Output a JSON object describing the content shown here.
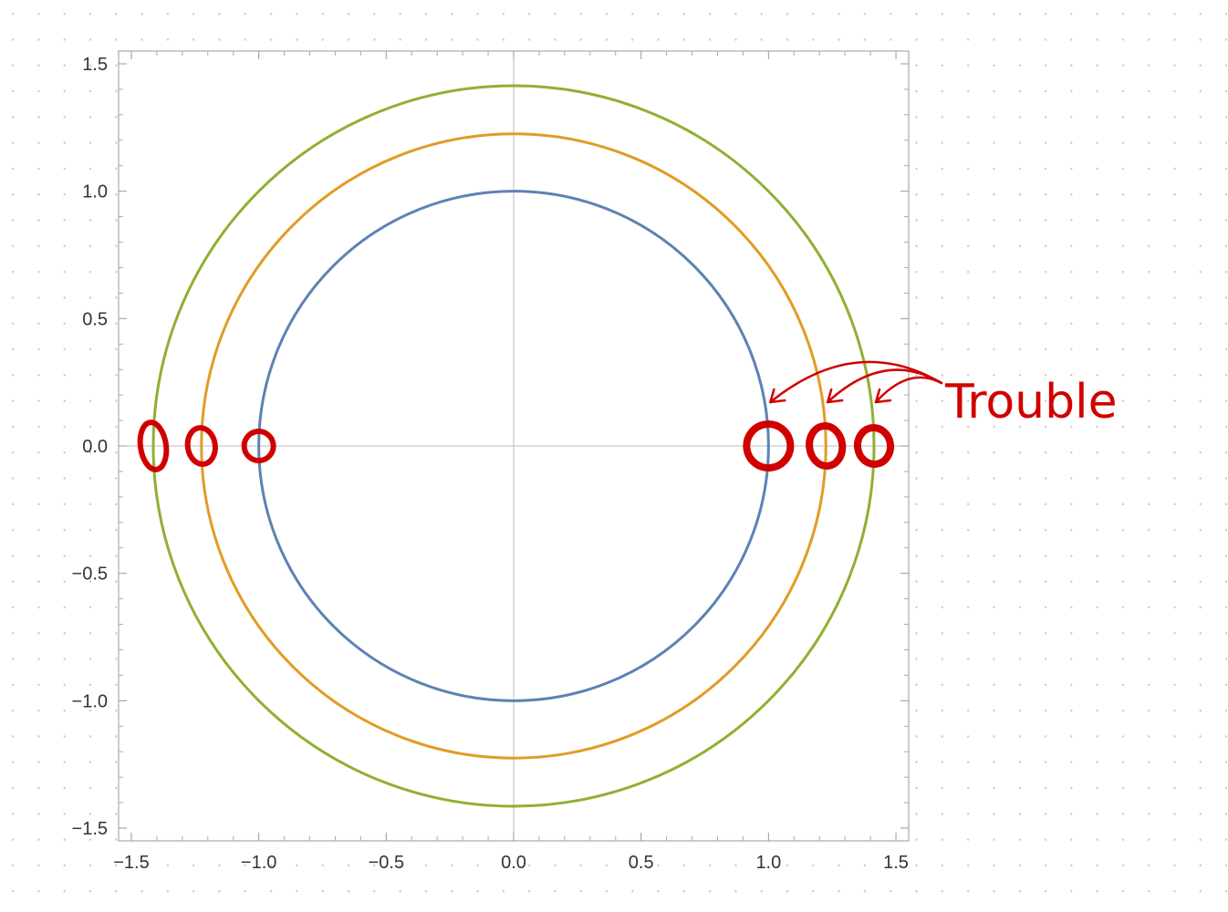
{
  "chart_data": {
    "type": "line",
    "title": "",
    "xlabel": "",
    "ylabel": "",
    "xlim": [
      -1.55,
      1.55
    ],
    "ylim": [
      -1.55,
      1.55
    ],
    "x_ticks": [
      "-1.5",
      "-1.0",
      "-0.5",
      "0.0",
      "0.5",
      "1.0",
      "1.5"
    ],
    "y_ticks": [
      "1.5",
      "1.0",
      "0.5",
      "0.0",
      "-0.5",
      "-1.0",
      "-1.5"
    ],
    "grid": false,
    "axes_through_origin": true,
    "series": [
      {
        "shape": "circle",
        "radius": 1.0,
        "color": "#5e81b5"
      },
      {
        "shape": "circle",
        "radius": 1.225,
        "color": "#e19c24"
      },
      {
        "shape": "circle",
        "radius": 1.414,
        "color": "#8fb032"
      }
    ],
    "annotation": {
      "text": "Trouble",
      "color": "#d00000",
      "marked_points_x": [
        -1.414,
        -1.225,
        -1.0,
        1.0,
        1.225,
        1.414
      ]
    }
  }
}
